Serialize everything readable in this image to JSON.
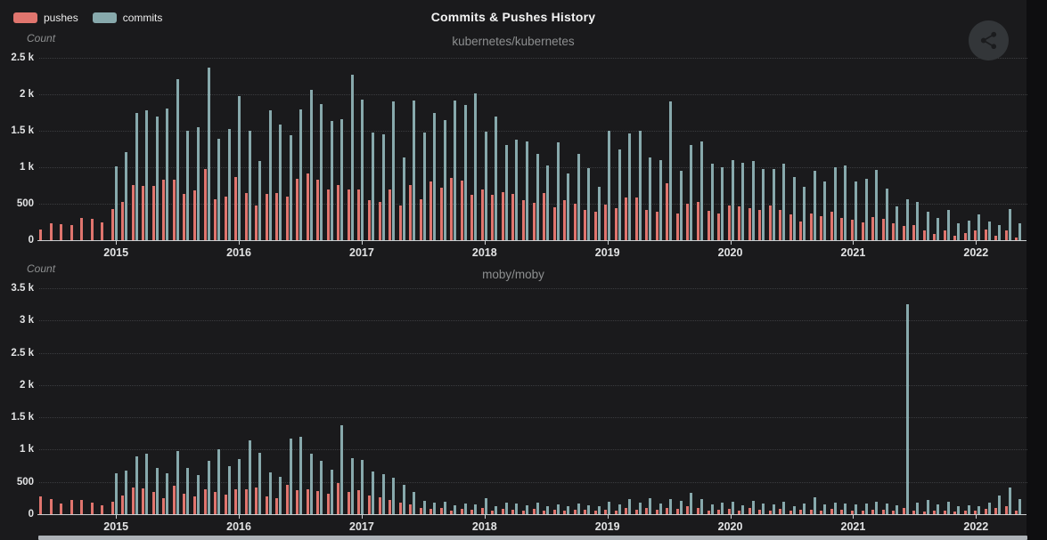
{
  "app": {
    "title": "Commits & Pushes History",
    "legend": [
      {
        "label": "pushes",
        "color": "#e0756e"
      },
      {
        "label": "commits",
        "color": "#87a9ac"
      }
    ]
  },
  "colors": {
    "background": "#1a1a1c",
    "outer_edge": "#0e0e10",
    "pushes": "#e0756e",
    "commits": "#87a9ac",
    "axis": "#cbced0",
    "gridline": "#3b3c3f",
    "tick_text": "#e2e3e4",
    "muted_text": "#8d8f90",
    "scrollbar": "#adb2b7",
    "share_button_bg": "#333639",
    "share_glyph": "#1b1c1e"
  },
  "chart_data": [
    {
      "type": "bar",
      "title": "kubernetes/kubernetes",
      "ylabel": "Count",
      "ylim": [
        0,
        2500
      ],
      "ytick_step": 500,
      "ytick_labels": [
        "0",
        "500",
        "1 k",
        "1.5 k",
        "2 k",
        "2.5 k"
      ],
      "grid": "dotted horizontal gridlines",
      "legend_position": "top-left",
      "x_interval": "monthly",
      "x_start": "2014-06",
      "x_end": "2022-05",
      "year_ticks": [
        "2015",
        "2016",
        "2017",
        "2018",
        "2019",
        "2020",
        "2021",
        "2022"
      ],
      "series": [
        {
          "name": "pushes",
          "values": [
            150,
            230,
            220,
            210,
            305,
            290,
            240,
            430,
            520,
            755,
            750,
            745,
            830,
            835,
            630,
            680,
            980,
            560,
            600,
            870,
            650,
            470,
            630,
            650,
            600,
            840,
            920,
            830,
            690,
            760,
            690,
            700,
            545,
            530,
            700,
            480,
            755,
            560,
            800,
            720,
            855,
            820,
            620,
            690,
            620,
            660,
            640,
            555,
            510,
            650,
            450,
            555,
            500,
            420,
            390,
            490,
            440,
            590,
            585,
            420,
            395,
            780,
            370,
            500,
            520,
            400,
            370,
            470,
            465,
            440,
            420,
            480,
            420,
            350,
            260,
            360,
            330,
            395,
            300,
            280,
            240,
            320,
            290,
            230,
            190,
            210,
            130,
            90,
            140,
            60,
            100,
            130,
            150,
            60,
            130,
            40
          ]
        },
        {
          "name": "commits",
          "values": [
            0,
            0,
            0,
            0,
            0,
            0,
            0,
            1010,
            1210,
            1750,
            1780,
            1700,
            1800,
            2210,
            1500,
            1550,
            2360,
            1390,
            1520,
            1980,
            1500,
            1080,
            1780,
            1580,
            1440,
            1790,
            2060,
            1870,
            1640,
            1660,
            2270,
            1930,
            1470,
            1450,
            1900,
            1130,
            1920,
            1480,
            1750,
            1650,
            1920,
            1850,
            2010,
            1490,
            1690,
            1310,
            1380,
            1350,
            1180,
            1030,
            1340,
            910,
            1180,
            990,
            730,
            1500,
            1240,
            1460,
            1500,
            1140,
            1100,
            1905,
            955,
            1300,
            1350,
            1050,
            1000,
            1100,
            1060,
            1090,
            970,
            980,
            1050,
            870,
            730,
            950,
            800,
            1000,
            1020,
            800,
            840,
            960,
            710,
            460,
            560,
            530,
            390,
            310,
            420,
            230,
            270,
            350,
            260,
            210,
            430,
            230
          ]
        }
      ]
    },
    {
      "type": "bar",
      "title": "moby/moby",
      "ylabel": "Count",
      "ylim": [
        0,
        3500
      ],
      "ytick_step": 500,
      "ytick_labels": [
        "0",
        "500",
        "1 k",
        "1.5 k",
        "2 k",
        "2.5 k",
        "3 k",
        "3.5 k"
      ],
      "grid": "dotted horizontal gridlines",
      "legend_position": "shared top-left",
      "x_interval": "monthly",
      "x_start": "2014-06",
      "x_end": "2022-05",
      "year_ticks": [
        "2015",
        "2016",
        "2017",
        "2018",
        "2019",
        "2020",
        "2021",
        "2022"
      ],
      "series": [
        {
          "name": "pushes",
          "values": [
            280,
            230,
            160,
            220,
            215,
            180,
            140,
            200,
            290,
            410,
            400,
            340,
            250,
            440,
            320,
            270,
            380,
            350,
            310,
            390,
            385,
            415,
            270,
            250,
            455,
            370,
            380,
            360,
            315,
            485,
            350,
            370,
            285,
            260,
            225,
            185,
            150,
            95,
            80,
            95,
            50,
            85,
            65,
            100,
            60,
            80,
            70,
            60,
            80,
            55,
            70,
            60,
            75,
            65,
            55,
            70,
            55,
            90,
            65,
            100,
            70,
            95,
            80,
            120,
            90,
            60,
            70,
            80,
            60,
            90,
            70,
            60,
            80,
            55,
            65,
            75,
            60,
            85,
            70,
            60,
            55,
            70,
            65,
            55,
            90,
            50,
            45,
            60,
            55,
            40,
            50,
            60,
            80,
            90,
            120,
            60
          ]
        },
        {
          "name": "commits",
          "values": [
            0,
            0,
            0,
            0,
            0,
            0,
            0,
            630,
            675,
            890,
            940,
            715,
            630,
            980,
            715,
            610,
            825,
            1010,
            740,
            850,
            1150,
            950,
            650,
            575,
            1175,
            1205,
            935,
            825,
            695,
            1380,
            870,
            835,
            660,
            615,
            565,
            455,
            340,
            210,
            185,
            195,
            140,
            165,
            150,
            250,
            130,
            180,
            160,
            140,
            180,
            120,
            150,
            130,
            160,
            140,
            120,
            200,
            150,
            230,
            180,
            250,
            170,
            230,
            210,
            330,
            230,
            150,
            180,
            190,
            140,
            210,
            160,
            150,
            200,
            130,
            160,
            260,
            150,
            180,
            160,
            150,
            170,
            200,
            160,
            140,
            3250,
            180,
            220,
            150,
            200,
            120,
            140,
            120,
            180,
            290,
            420,
            230
          ]
        }
      ]
    }
  ]
}
